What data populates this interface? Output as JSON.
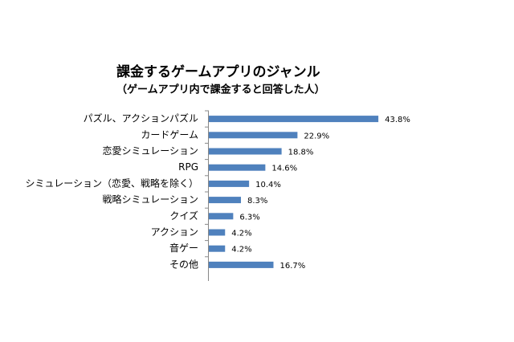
{
  "chart_data": {
    "type": "bar",
    "orientation": "horizontal",
    "title": "課金するゲームアプリのジャンル",
    "subtitle": "（ゲームアプリ内で課金すると回答した人）",
    "categories": [
      "パズル、アクションパズル",
      "カードゲーム",
      "恋愛シミュレーション",
      "RPG",
      "シミュレーション（恋愛、戦略を除く）",
      "戦略シミュレーション",
      "クイズ",
      "アクション",
      "音ゲー",
      "その他"
    ],
    "values": [
      43.8,
      22.9,
      18.8,
      14.6,
      10.4,
      8.3,
      6.3,
      4.2,
      4.2,
      16.7
    ],
    "value_labels": [
      "43.8%",
      "22.9%",
      "18.8%",
      "14.6%",
      "10.4%",
      "8.3%",
      "6.3%",
      "4.2%",
      "4.2%",
      "16.7%"
    ],
    "color": "#4f81bd"
  }
}
